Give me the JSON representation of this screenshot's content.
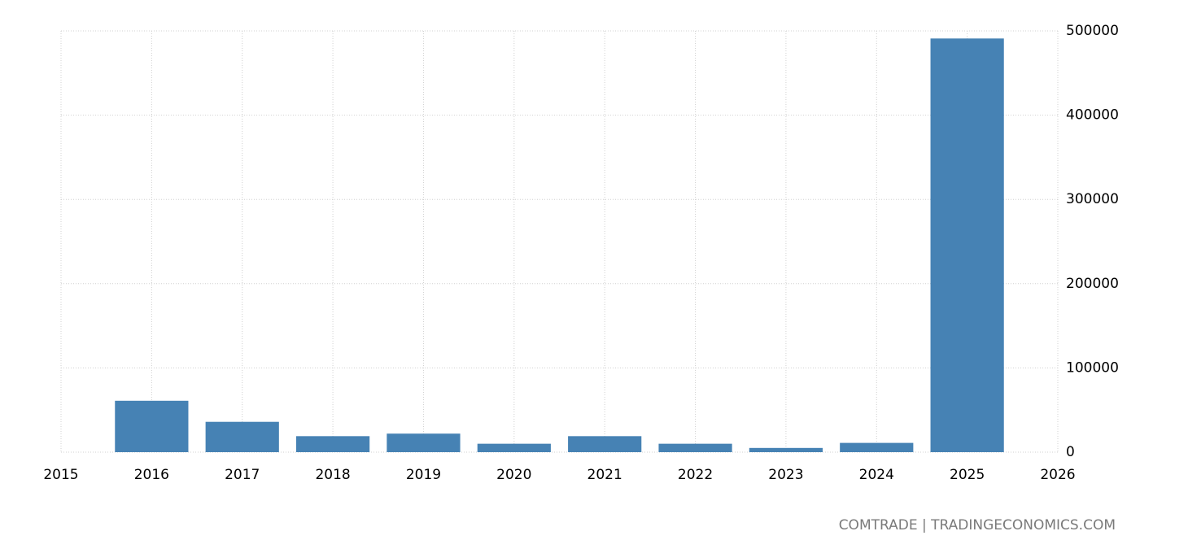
{
  "chart_data": {
    "type": "bar",
    "x": [
      2016,
      2017,
      2018,
      2019,
      2020,
      2021,
      2022,
      2023,
      2024,
      2025
    ],
    "values": [
      61000,
      36000,
      19000,
      22000,
      10000,
      19000,
      10000,
      5000,
      11000,
      491000
    ],
    "color": "#4682b4",
    "xlim": [
      2015,
      2026
    ],
    "xticks": [
      2015,
      2016,
      2017,
      2018,
      2019,
      2020,
      2021,
      2022,
      2023,
      2024,
      2025,
      2026
    ],
    "ylim": [
      0,
      500000
    ],
    "yticks": [
      0,
      100000,
      200000,
      300000,
      400000,
      500000
    ],
    "grid": true,
    "source": "COMTRADE | TRADINGECONOMICS.COM"
  }
}
